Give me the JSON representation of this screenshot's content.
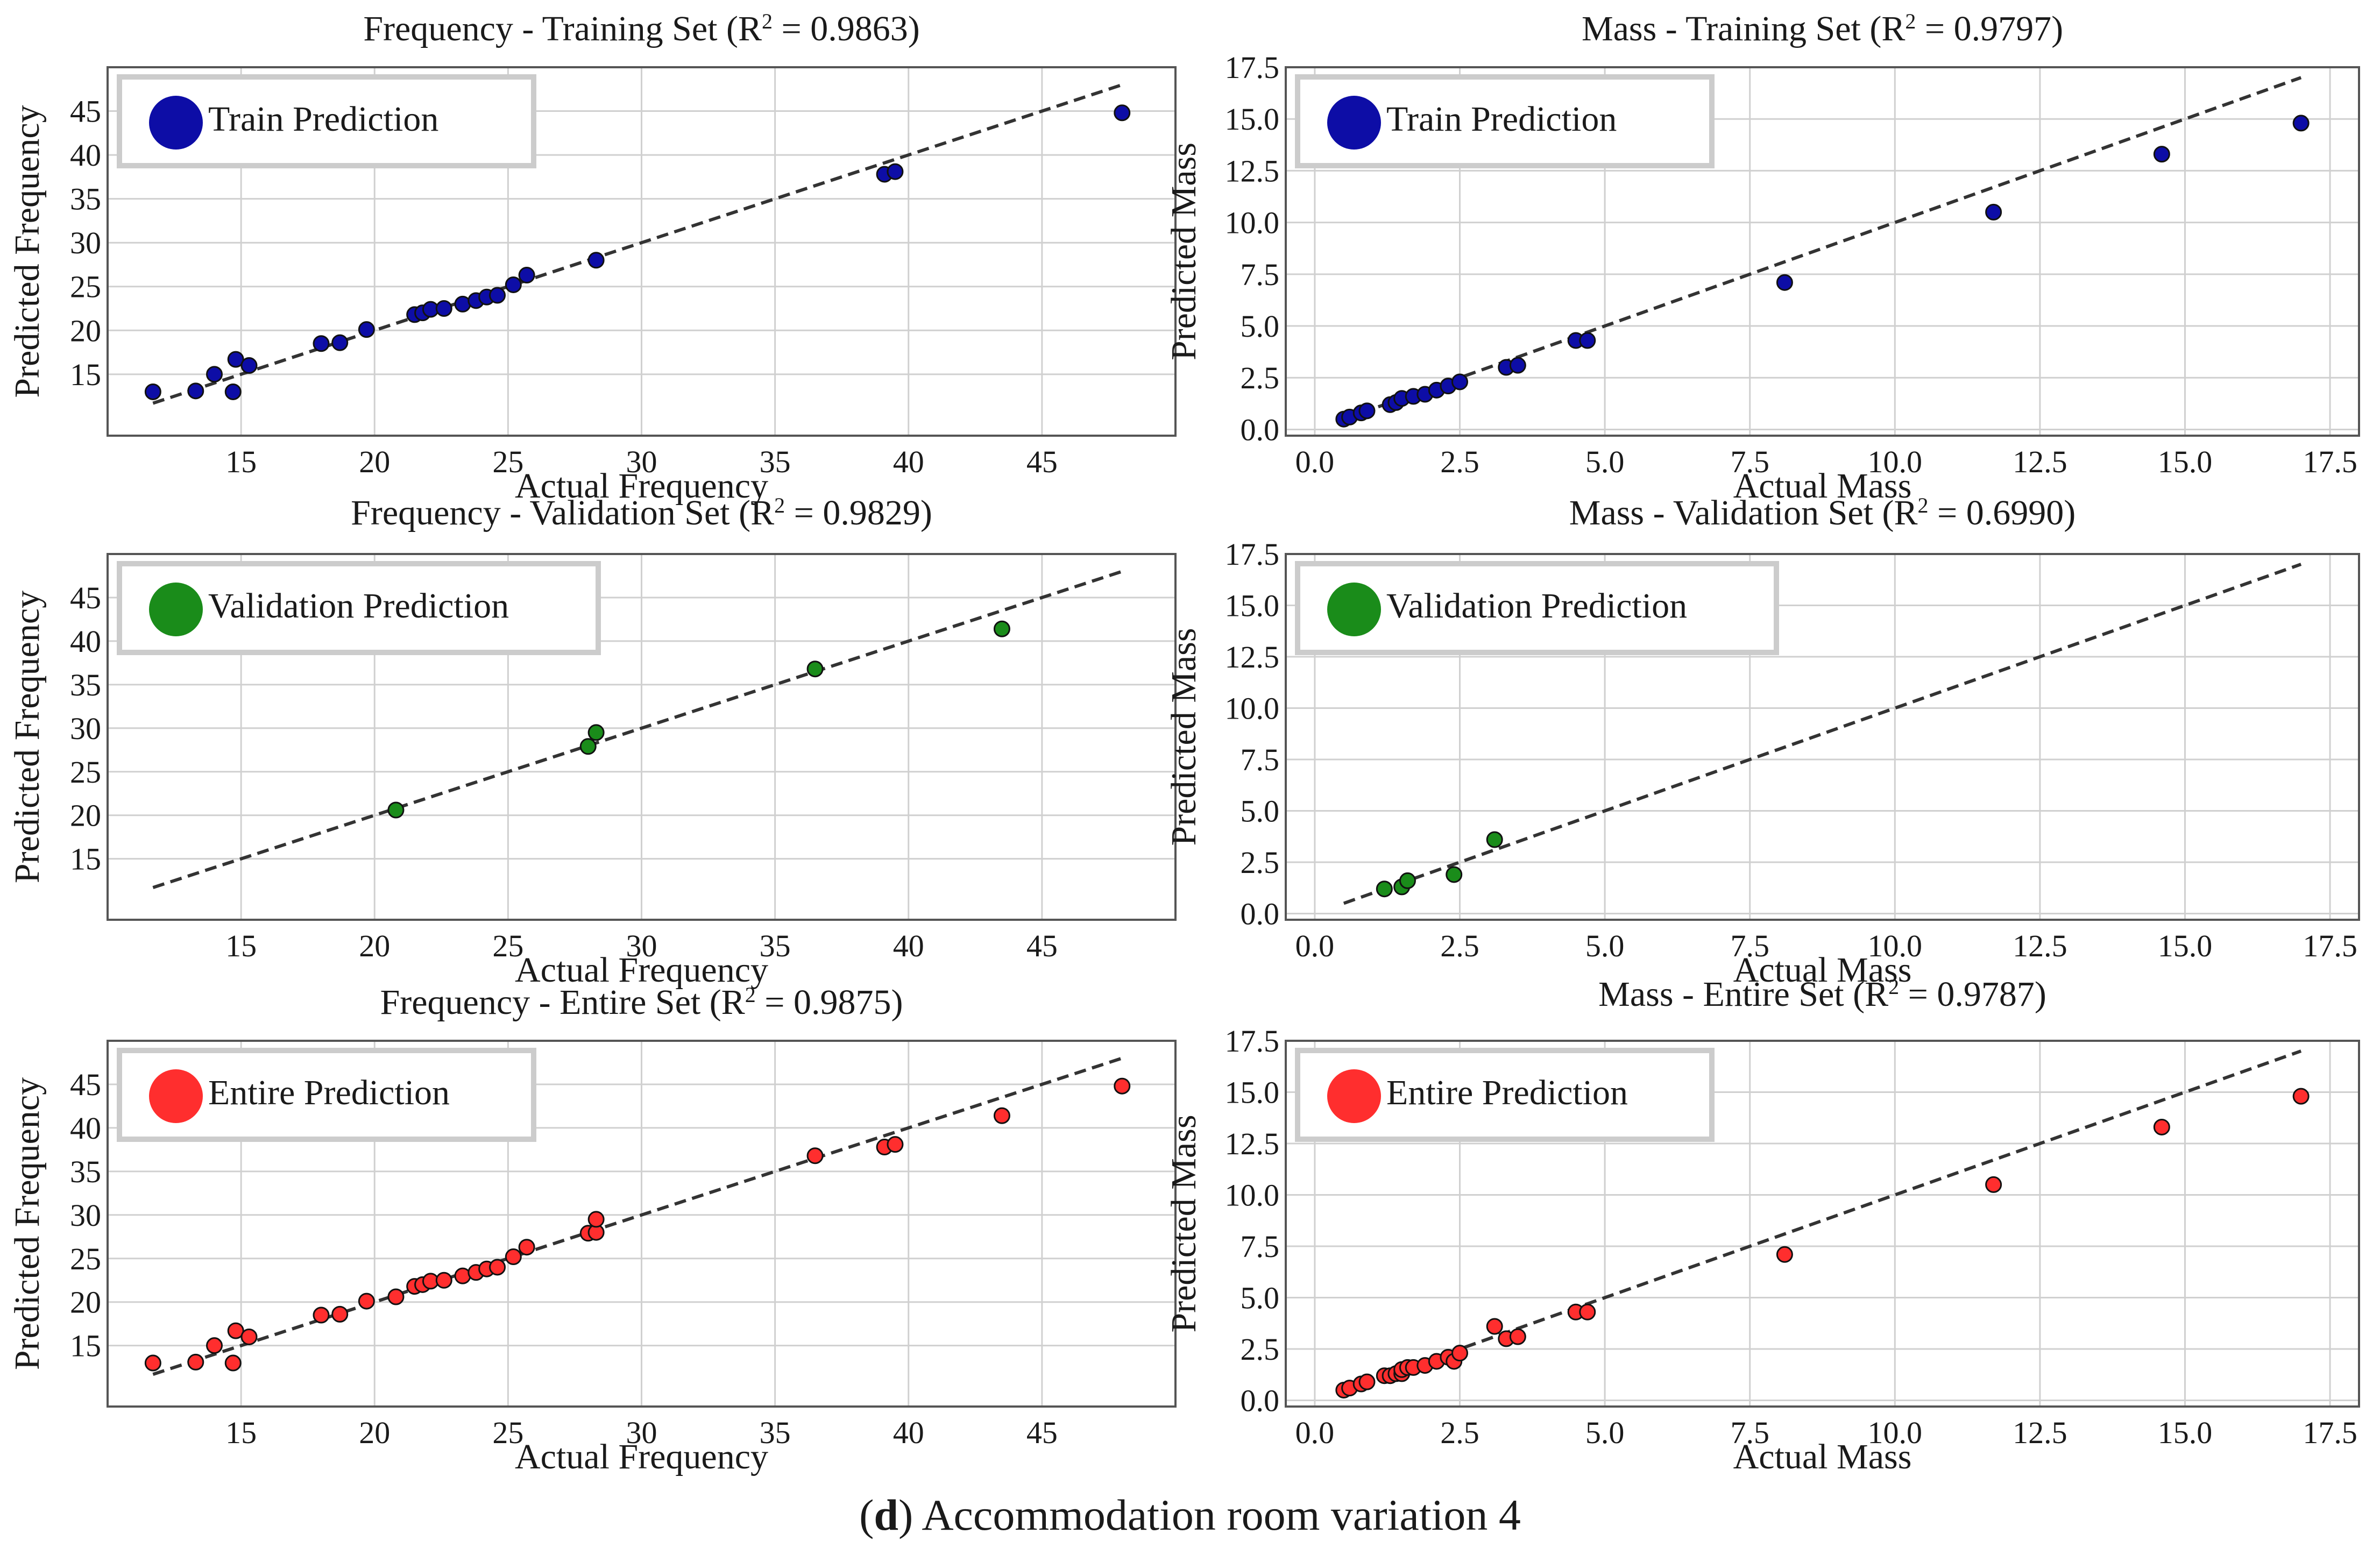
{
  "caption": {
    "letter": "d",
    "text": "Accommodation room variation 4"
  },
  "colors": {
    "train": "#0d0da6",
    "validation": "#1a8c1a",
    "entire": "#ff2e2e",
    "grid": "#d0d0d0",
    "line": "#333333"
  },
  "chart_data": [
    {
      "type": "scatter",
      "title_prefix": "Frequency - Training Set (R",
      "r2": "0.9863",
      "xlabel": "Actual Frequency",
      "ylabel": "Predicted Frequency",
      "xlim": [
        10,
        50
      ],
      "ylim": [
        8,
        50
      ],
      "xticks": [
        15,
        20,
        25,
        30,
        35,
        40,
        45
      ],
      "xtick_labels": [
        "15",
        "20",
        "25",
        "30",
        "35",
        "40",
        "45"
      ],
      "yticks": [
        15,
        20,
        25,
        30,
        35,
        40,
        45
      ],
      "ytick_labels": [
        "15",
        "20",
        "25",
        "30",
        "35",
        "40",
        "45"
      ],
      "legend": "Train Prediction",
      "legend_position": "top-left",
      "color_key": "train",
      "ref_line": [
        11.7,
        48.0
      ],
      "x": [
        11.7,
        13.3,
        14.0,
        14.7,
        14.8,
        15.3,
        18.0,
        18.7,
        19.7,
        21.5,
        21.8,
        22.1,
        22.6,
        23.3,
        23.8,
        24.2,
        24.6,
        25.2,
        25.7,
        28.3,
        39.1,
        39.5,
        48.0
      ],
      "y": [
        13.0,
        13.1,
        15.0,
        13.0,
        16.7,
        16.0,
        18.5,
        18.6,
        20.1,
        21.8,
        22.0,
        22.4,
        22.5,
        23.0,
        23.4,
        23.8,
        24.0,
        25.2,
        26.3,
        28.0,
        37.8,
        38.1,
        44.8
      ]
    },
    {
      "type": "scatter",
      "title_prefix": "Mass - Training Set (R",
      "r2": "0.9797",
      "xlabel": "Actual Mass",
      "ylabel": "Predicted Mass",
      "xlim": [
        -0.5,
        18.0
      ],
      "ylim": [
        -0.3,
        17.5
      ],
      "xticks": [
        0,
        2.5,
        5,
        7.5,
        10,
        12.5,
        15,
        17.5
      ],
      "xtick_labels": [
        "0.0",
        "2.5",
        "5.0",
        "7.5",
        "10.0",
        "12.5",
        "15.0",
        "17.5"
      ],
      "yticks": [
        0,
        2.5,
        5,
        7.5,
        10,
        12.5,
        15,
        17.5
      ],
      "ytick_labels": [
        "0.0",
        "2.5",
        "5.0",
        "7.5",
        "10.0",
        "12.5",
        "15.0",
        "17.5"
      ],
      "legend": "Train Prediction",
      "legend_position": "top-left",
      "color_key": "train",
      "ref_line": [
        0.5,
        17.0
      ],
      "x": [
        0.5,
        0.6,
        0.8,
        0.9,
        1.3,
        1.4,
        1.5,
        1.7,
        1.9,
        2.1,
        2.3,
        2.5,
        3.3,
        3.5,
        4.5,
        4.7,
        8.1,
        11.7,
        14.6,
        17.0
      ],
      "y": [
        0.5,
        0.6,
        0.8,
        0.9,
        1.2,
        1.3,
        1.5,
        1.6,
        1.7,
        1.9,
        2.1,
        2.3,
        3.0,
        3.1,
        4.3,
        4.3,
        7.1,
        10.5,
        13.3,
        14.8
      ]
    },
    {
      "type": "scatter",
      "title_prefix": "Frequency - Validation Set (R",
      "r2": "0.9829",
      "xlabel": "Actual Frequency",
      "ylabel": "Predicted Frequency",
      "xlim": [
        10,
        50
      ],
      "ylim": [
        8,
        50
      ],
      "xticks": [
        15,
        20,
        25,
        30,
        35,
        40,
        45
      ],
      "xtick_labels": [
        "15",
        "20",
        "25",
        "30",
        "35",
        "40",
        "45"
      ],
      "yticks": [
        15,
        20,
        25,
        30,
        35,
        40,
        45
      ],
      "ytick_labels": [
        "15",
        "20",
        "25",
        "30",
        "35",
        "40",
        "45"
      ],
      "legend": "Validation Prediction",
      "legend_position": "top-left",
      "color_key": "validation",
      "ref_line": [
        11.7,
        48.0
      ],
      "x": [
        20.8,
        28.0,
        28.3,
        36.5,
        43.5
      ],
      "y": [
        20.6,
        27.9,
        29.5,
        36.8,
        41.4
      ]
    },
    {
      "type": "scatter",
      "title_prefix": "Mass - Validation Set (R",
      "r2": "0.6990",
      "xlabel": "Actual Mass",
      "ylabel": "Predicted Mass",
      "xlim": [
        -0.5,
        18.0
      ],
      "ylim": [
        -0.3,
        17.5
      ],
      "xticks": [
        0,
        2.5,
        5,
        7.5,
        10,
        12.5,
        15,
        17.5
      ],
      "xtick_labels": [
        "0.0",
        "2.5",
        "5.0",
        "7.5",
        "10.0",
        "12.5",
        "15.0",
        "17.5"
      ],
      "yticks": [
        0,
        2.5,
        5,
        7.5,
        10,
        12.5,
        15,
        17.5
      ],
      "ytick_labels": [
        "0.0",
        "2.5",
        "5.0",
        "7.5",
        "10.0",
        "12.5",
        "15.0",
        "17.5"
      ],
      "legend": "Validation Prediction",
      "legend_position": "top-left",
      "color_key": "validation",
      "ref_line": [
        0.5,
        17.0
      ],
      "x": [
        1.2,
        1.5,
        1.6,
        2.4,
        3.1
      ],
      "y": [
        1.2,
        1.3,
        1.6,
        1.9,
        3.6
      ]
    },
    {
      "type": "scatter",
      "title_prefix": "Frequency - Entire Set (R",
      "r2": "0.9875",
      "xlabel": "Actual Frequency",
      "ylabel": "Predicted Frequency",
      "xlim": [
        10,
        50
      ],
      "ylim": [
        8,
        50
      ],
      "xticks": [
        15,
        20,
        25,
        30,
        35,
        40,
        45
      ],
      "xtick_labels": [
        "15",
        "20",
        "25",
        "30",
        "35",
        "40",
        "45"
      ],
      "yticks": [
        15,
        20,
        25,
        30,
        35,
        40,
        45
      ],
      "ytick_labels": [
        "15",
        "20",
        "25",
        "30",
        "35",
        "40",
        "45"
      ],
      "legend": "Entire Prediction",
      "legend_position": "top-left",
      "color_key": "entire",
      "ref_line": [
        11.7,
        48.0
      ],
      "x": [
        11.7,
        13.3,
        14.0,
        14.7,
        14.8,
        15.3,
        18.0,
        18.7,
        19.7,
        20.8,
        21.5,
        21.8,
        22.1,
        22.6,
        23.3,
        23.8,
        24.2,
        24.6,
        25.2,
        25.7,
        28.0,
        28.3,
        28.3,
        36.5,
        39.1,
        39.5,
        43.5,
        48.0
      ],
      "y": [
        13.0,
        13.1,
        15.0,
        13.0,
        16.7,
        16.0,
        18.5,
        18.6,
        20.1,
        20.6,
        21.8,
        22.0,
        22.4,
        22.5,
        23.0,
        23.4,
        23.8,
        24.0,
        25.2,
        26.3,
        27.9,
        28.0,
        29.5,
        36.8,
        37.8,
        38.1,
        41.4,
        44.8
      ]
    },
    {
      "type": "scatter",
      "title_prefix": "Mass - Entire Set (R",
      "r2": "0.9787",
      "xlabel": "Actual Mass",
      "ylabel": "Predicted Mass",
      "xlim": [
        -0.5,
        18.0
      ],
      "ylim": [
        -0.3,
        17.5
      ],
      "xticks": [
        0,
        2.5,
        5,
        7.5,
        10,
        12.5,
        15,
        17.5
      ],
      "xtick_labels": [
        "0.0",
        "2.5",
        "5.0",
        "7.5",
        "10.0",
        "12.5",
        "15.0",
        "17.5"
      ],
      "yticks": [
        0,
        2.5,
        5,
        7.5,
        10,
        12.5,
        15,
        17.5
      ],
      "ytick_labels": [
        "0.0",
        "2.5",
        "5.0",
        "7.5",
        "10.0",
        "12.5",
        "15.0",
        "17.5"
      ],
      "legend": "Entire Prediction",
      "legend_position": "top-left",
      "color_key": "entire",
      "ref_line": [
        0.5,
        17.0
      ],
      "x": [
        0.5,
        0.6,
        0.8,
        0.9,
        1.2,
        1.3,
        1.4,
        1.5,
        1.5,
        1.6,
        1.7,
        1.9,
        2.1,
        2.3,
        2.4,
        2.5,
        3.1,
        3.3,
        3.5,
        4.5,
        4.7,
        8.1,
        11.7,
        14.6,
        17.0
      ],
      "y": [
        0.5,
        0.6,
        0.8,
        0.9,
        1.2,
        1.2,
        1.3,
        1.3,
        1.5,
        1.6,
        1.6,
        1.7,
        1.9,
        2.1,
        1.9,
        2.3,
        3.6,
        3.0,
        3.1,
        4.3,
        4.3,
        7.1,
        10.5,
        13.3,
        14.8
      ]
    }
  ]
}
